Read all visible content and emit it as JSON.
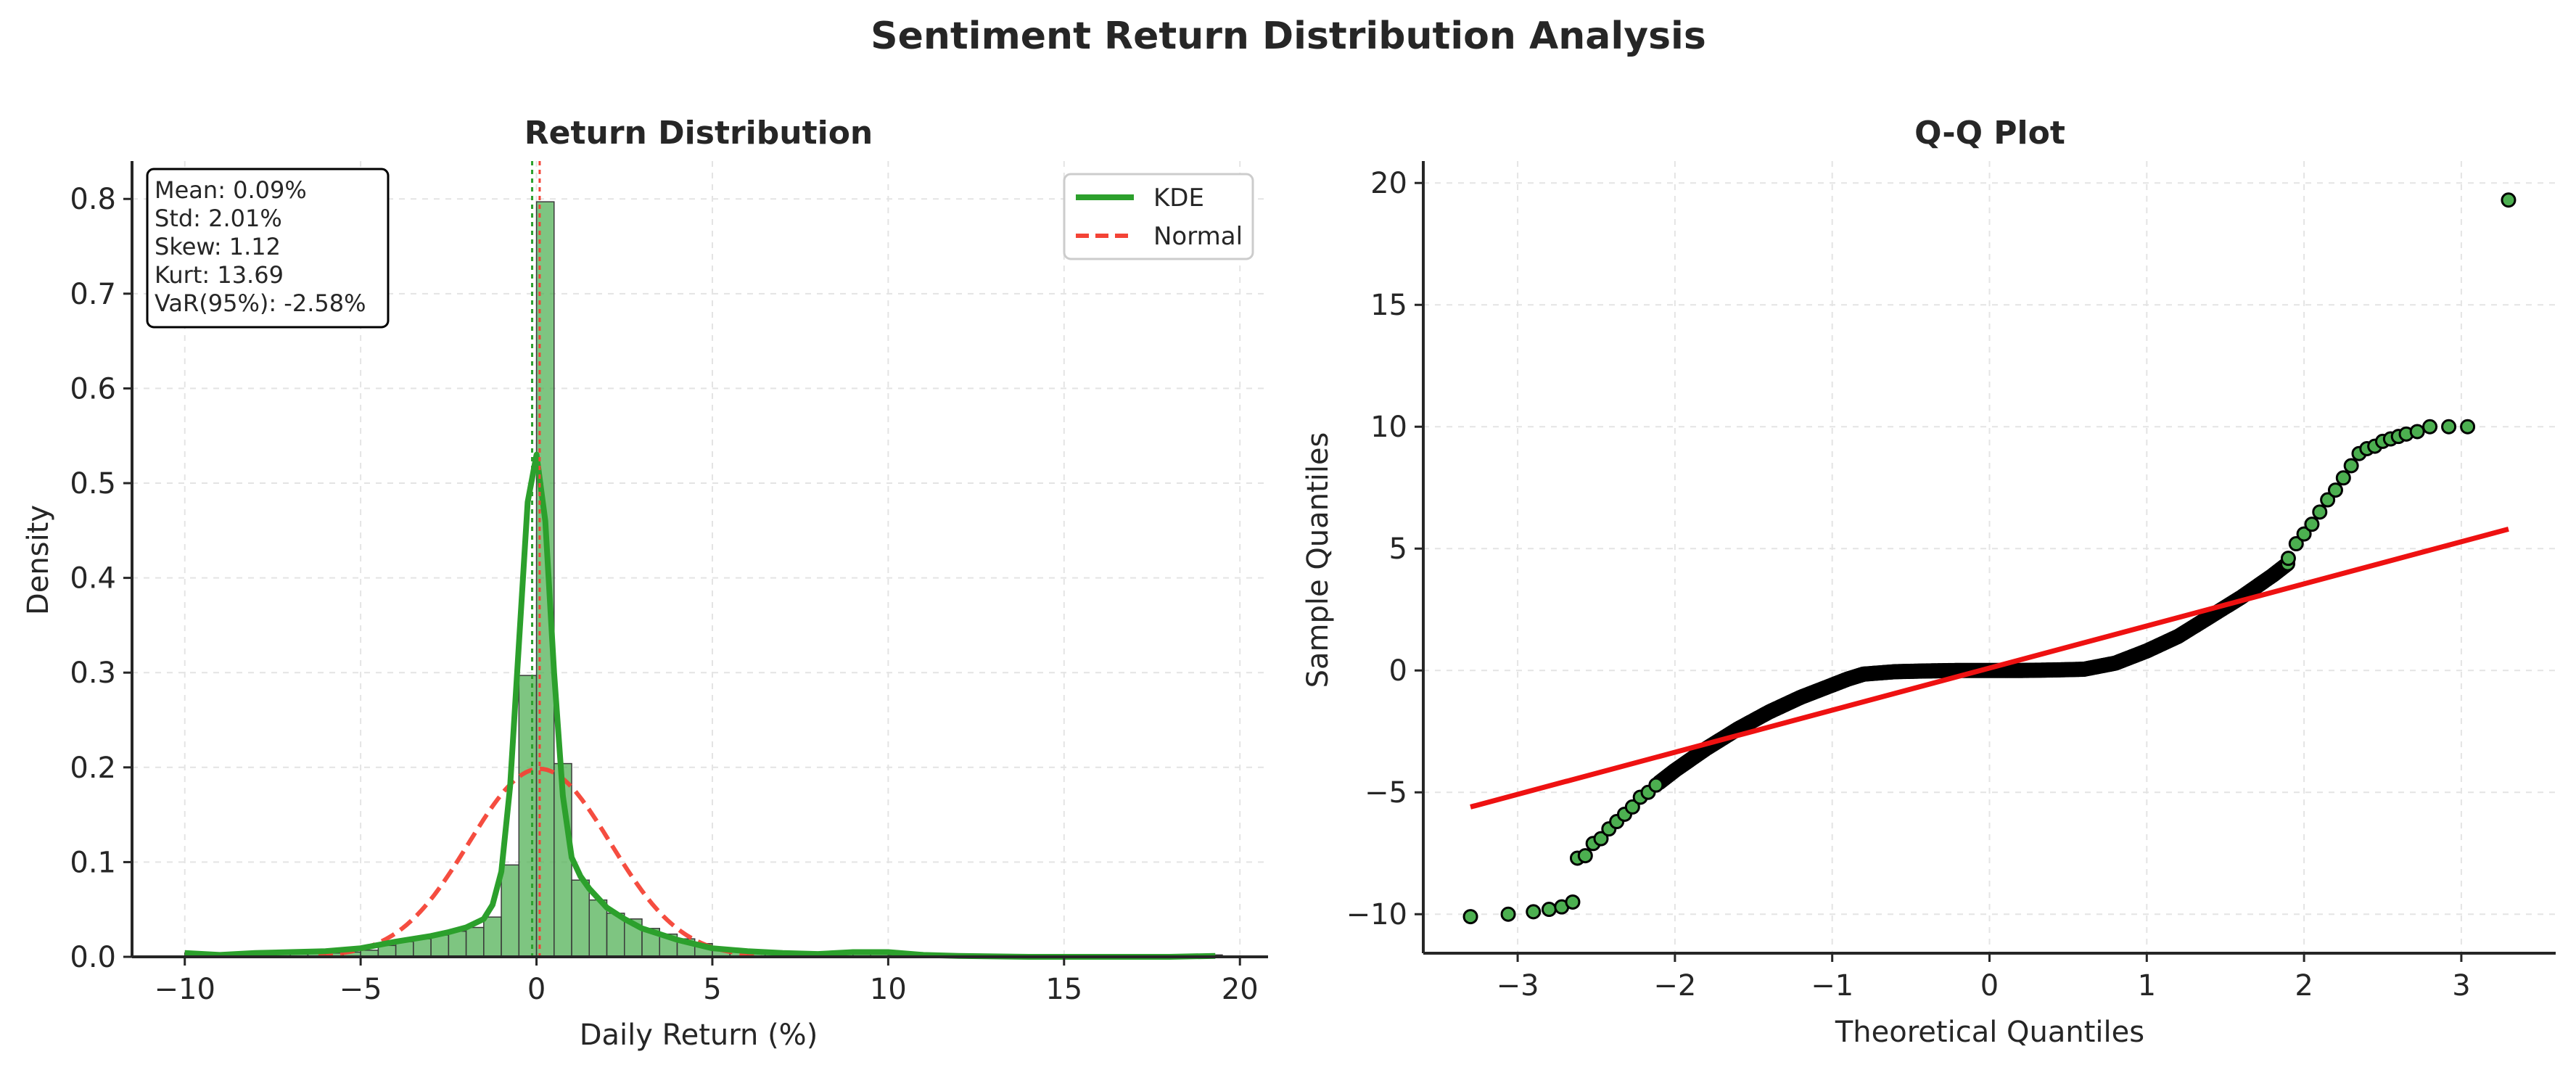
{
  "figure": {
    "title": "Sentiment Return Distribution Analysis"
  },
  "chart_data": [
    {
      "type": "bar",
      "title": "Return Distribution",
      "xlabel": "Daily Return (%)",
      "ylabel": "Density",
      "xlim": [
        -11.5,
        20.8
      ],
      "ylim": [
        0,
        0.84
      ],
      "xticks": [
        -10,
        -5,
        0,
        5,
        10,
        15,
        20
      ],
      "yticks": [
        0.0,
        0.1,
        0.2,
        0.3,
        0.4,
        0.5,
        0.6,
        0.7,
        0.8
      ],
      "grid": true,
      "legend_position": "top-right",
      "colors": {
        "bars": "#4caf50",
        "kde": "#2ca02c",
        "normal": "#f44336",
        "mean_line": "#f44336",
        "median_line": "#2ca02c"
      },
      "histogram": {
        "bin_edges": [
          -10.0,
          -9.5,
          -9.0,
          -8.5,
          -8.0,
          -7.5,
          -7.0,
          -6.5,
          -6.0,
          -5.5,
          -5.0,
          -4.5,
          -4.0,
          -3.5,
          -3.0,
          -2.5,
          -2.0,
          -1.5,
          -1.0,
          -0.5,
          0.0,
          0.5,
          1.0,
          1.5,
          2.0,
          2.5,
          3.0,
          3.5,
          4.0,
          4.5,
          5.0,
          5.5,
          6.0,
          6.5,
          7.0,
          7.5,
          8.0,
          8.5,
          9.0,
          9.5,
          10.0,
          10.5,
          11.0,
          11.5,
          12.0,
          12.5,
          13.0,
          13.5,
          14.0,
          14.5,
          15.0,
          15.5,
          16.0,
          16.5,
          17.0,
          17.5,
          18.0,
          18.5,
          19.0,
          19.5
        ],
        "densities": [
          0.004,
          0.001,
          0.001,
          0.002,
          0.002,
          0.003,
          0.003,
          0.004,
          0.004,
          0.005,
          0.007,
          0.012,
          0.016,
          0.019,
          0.023,
          0.027,
          0.031,
          0.042,
          0.097,
          0.297,
          0.797,
          0.204,
          0.081,
          0.06,
          0.046,
          0.04,
          0.03,
          0.024,
          0.019,
          0.014,
          0.008,
          0.005,
          0.004,
          0.003,
          0.003,
          0.002,
          0.002,
          0.003,
          0.004,
          0.004,
          0.002,
          0.001,
          0.0,
          0.0,
          0.0,
          0.0,
          0.0,
          0.0,
          0.0,
          0.0,
          0.0,
          0.0,
          0.0,
          0.0,
          0.0,
          0.0,
          0.0,
          0.0,
          0.002
        ]
      },
      "kde": {
        "name": "KDE",
        "x": [
          -10.0,
          -9.0,
          -8.0,
          -7.0,
          -6.0,
          -5.0,
          -4.0,
          -3.0,
          -2.5,
          -2.0,
          -1.5,
          -1.25,
          -1.0,
          -0.75,
          -0.5,
          -0.25,
          0.0,
          0.25,
          0.5,
          0.75,
          1.0,
          1.25,
          1.5,
          2.0,
          2.5,
          3.0,
          4.0,
          5.0,
          6.0,
          7.0,
          8.0,
          9.0,
          10.0,
          11.0,
          12.0,
          14.0,
          16.0,
          18.0,
          19.3
        ],
        "y": [
          0.004,
          0.002,
          0.004,
          0.005,
          0.006,
          0.009,
          0.016,
          0.022,
          0.026,
          0.031,
          0.04,
          0.055,
          0.09,
          0.18,
          0.33,
          0.48,
          0.53,
          0.46,
          0.3,
          0.17,
          0.105,
          0.085,
          0.072,
          0.052,
          0.04,
          0.03,
          0.018,
          0.009,
          0.006,
          0.004,
          0.003,
          0.005,
          0.005,
          0.002,
          0.001,
          0.0,
          0.0,
          0.0,
          0.001
        ]
      },
      "normal": {
        "name": "Normal",
        "mean": 0.09,
        "std": 2.01
      },
      "vertical_lines": [
        {
          "x": 0.09,
          "style": "dotted"
        },
        {
          "x": 0.0,
          "style": "dotted"
        }
      ],
      "stats_box": [
        "Mean: 0.09%",
        "Std: 2.01%",
        "Skew: 1.12",
        "Kurt: 13.69",
        "VaR(95%): -2.58%"
      ]
    },
    {
      "type": "scatter",
      "title": "Q-Q Plot",
      "xlabel": "Theoretical Quantiles",
      "ylabel": "Sample Quantiles",
      "xlim": [
        -3.6,
        3.6
      ],
      "ylim": [
        -11.6,
        20.9
      ],
      "xticks": [
        -3,
        -2,
        -1,
        0,
        1,
        2,
        3
      ],
      "yticks": [
        -10,
        -5,
        0,
        5,
        10,
        15,
        20
      ],
      "grid": true,
      "colors": {
        "points": "#4caf50",
        "edge": "#000000",
        "fit_line": "#ee1111"
      },
      "fit_line": {
        "x": [
          -3.3,
          3.3
        ],
        "y": [
          -5.6,
          5.8
        ]
      },
      "tail_points": {
        "x": [
          -3.3,
          -3.06,
          -2.9,
          -2.8,
          -2.72,
          -2.65,
          -2.62,
          -2.57,
          -2.52,
          -2.47,
          -2.42,
          -2.37,
          -2.32,
          -2.27,
          -2.22,
          -2.17,
          -2.12,
          1.9,
          1.95,
          2.0,
          2.05,
          2.1,
          2.15,
          2.2,
          2.25,
          2.3,
          2.35,
          2.4,
          2.45,
          2.5,
          2.55,
          2.6,
          2.65,
          2.72,
          2.8,
          2.92,
          3.04,
          3.3
        ],
        "y": [
          -10.1,
          -10.0,
          -9.9,
          -9.8,
          -9.7,
          -9.5,
          -7.7,
          -7.6,
          -7.1,
          -6.9,
          -6.5,
          -6.2,
          -5.9,
          -5.6,
          -5.2,
          -5.0,
          -4.7,
          4.6,
          5.2,
          5.6,
          6.0,
          6.5,
          7.0,
          7.4,
          7.9,
          8.4,
          8.9,
          9.1,
          9.2,
          9.4,
          9.5,
          9.6,
          9.7,
          9.8,
          10.0,
          10.0,
          10.0,
          19.3
        ]
      },
      "body_curve": {
        "x": [
          -2.1,
          -2.0,
          -1.8,
          -1.6,
          -1.4,
          -1.2,
          -1.0,
          -0.9,
          -0.8,
          -0.6,
          -0.4,
          -0.2,
          0.0,
          0.2,
          0.4,
          0.6,
          0.8,
          1.0,
          1.2,
          1.4,
          1.6,
          1.8,
          1.9
        ],
        "y": [
          -4.6,
          -4.1,
          -3.2,
          -2.4,
          -1.7,
          -1.1,
          -0.6,
          -0.35,
          -0.15,
          -0.05,
          -0.02,
          0.0,
          0.0,
          0.0,
          0.02,
          0.05,
          0.3,
          0.8,
          1.4,
          2.2,
          3.0,
          3.9,
          4.4
        ]
      }
    }
  ]
}
